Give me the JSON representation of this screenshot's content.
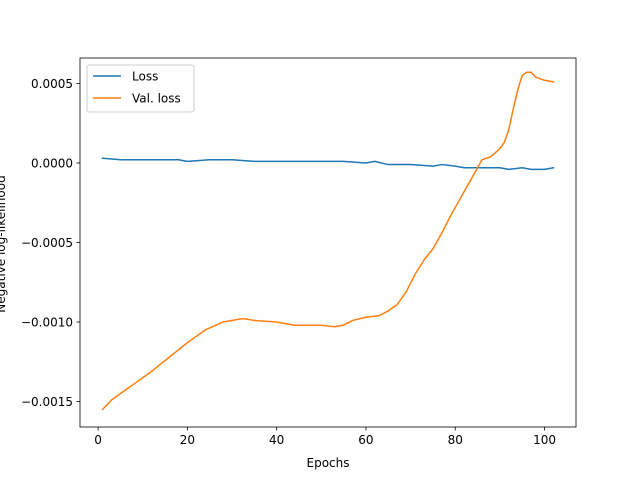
{
  "chart_data": {
    "type": "line",
    "title": "",
    "xlabel": "Epochs",
    "ylabel": "Negative log-likelihood",
    "xlim": [
      -4.05,
      107.05
    ],
    "ylim": [
      -0.00166,
      0.00066
    ],
    "x_ticks": [
      0,
      20,
      40,
      60,
      80,
      100
    ],
    "x_tick_labels": [
      "0",
      "20",
      "40",
      "60",
      "80",
      "100"
    ],
    "y_ticks": [
      -0.0015,
      -0.001,
      -0.0005,
      0.0,
      0.0005
    ],
    "y_tick_labels": [
      "−0.0015",
      "−0.0010",
      "−0.0005",
      "0.0000",
      "0.0005"
    ],
    "grid": false,
    "legend_position": "top-left",
    "series": [
      {
        "name": "Loss",
        "color": "#1f77b4",
        "x": [
          1,
          5,
          10,
          15,
          18,
          20,
          25,
          30,
          35,
          40,
          45,
          50,
          55,
          60,
          62,
          65,
          70,
          75,
          77,
          80,
          82,
          85,
          88,
          90,
          92,
          95,
          97,
          100,
          102
        ],
        "y": [
          3e-05,
          2e-05,
          2e-05,
          2e-05,
          2e-05,
          1e-05,
          2e-05,
          2e-05,
          1e-05,
          1e-05,
          1e-05,
          1e-05,
          1e-05,
          0.0,
          1e-05,
          -1e-05,
          -1e-05,
          -2e-05,
          -1e-05,
          -2e-05,
          -3e-05,
          -3e-05,
          -3e-05,
          -3e-05,
          -4e-05,
          -3e-05,
          -4e-05,
          -4e-05,
          -3e-05
        ]
      },
      {
        "name": "Val. loss",
        "color": "#ff7f0e",
        "x": [
          1,
          3,
          5,
          8,
          12,
          16,
          20,
          24,
          28,
          32,
          33,
          35,
          40,
          44,
          47,
          50,
          53,
          55,
          57,
          60,
          63,
          65,
          67,
          69,
          71,
          73,
          75,
          77,
          79,
          81,
          83,
          85,
          86,
          87,
          88,
          90,
          91,
          92,
          93,
          94,
          95,
          96,
          97,
          98,
          100,
          102
        ],
        "y": [
          -0.00155,
          -0.00149,
          -0.00145,
          -0.00139,
          -0.00131,
          -0.00122,
          -0.00113,
          -0.00105,
          -0.001,
          -0.00098,
          -0.00098,
          -0.00099,
          -0.001,
          -0.00102,
          -0.00102,
          -0.00102,
          -0.00103,
          -0.00102,
          -0.00099,
          -0.00097,
          -0.00096,
          -0.00093,
          -0.00089,
          -0.00081,
          -0.0007,
          -0.00061,
          -0.00054,
          -0.00044,
          -0.00033,
          -0.00023,
          -0.00013,
          -3e-05,
          2e-05,
          3e-05,
          4e-05,
          9e-05,
          0.00013,
          0.00021,
          0.00034,
          0.00046,
          0.00055,
          0.00057,
          0.00057,
          0.00054,
          0.00052,
          0.00051
        ]
      }
    ]
  }
}
